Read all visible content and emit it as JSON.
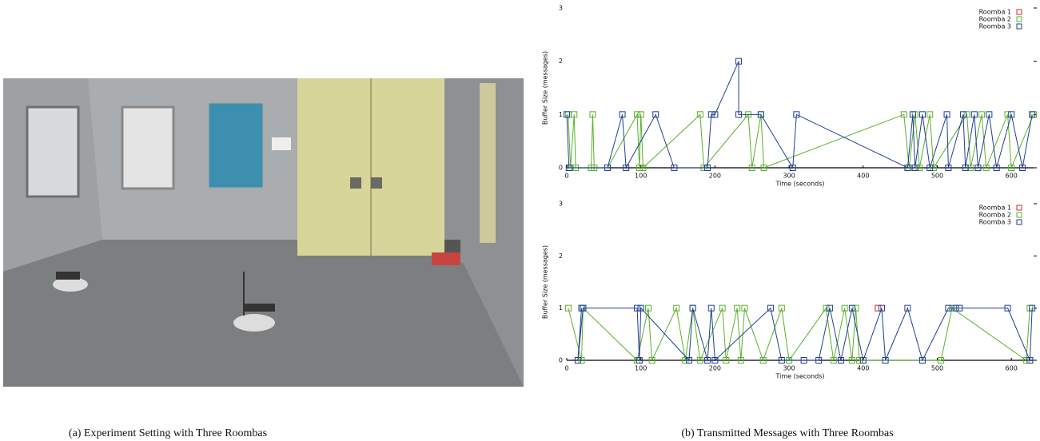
{
  "captions": [
    "(a) Experiment Setting with Three Roombas",
    "(b) Transmitted Messages with Three Roombas"
  ],
  "chart_data": [
    {
      "type": "line",
      "xlabel": "Time (seconds)",
      "ylabel": "Buffer Size (messages)",
      "xlim": [
        0,
        630
      ],
      "ylim": [
        0,
        3
      ],
      "xticks": [
        0,
        100,
        200,
        300,
        400,
        500,
        600
      ],
      "yticks": [
        0,
        1,
        2,
        3
      ],
      "legend": "upper right",
      "series": [
        {
          "name": "Roomba 1",
          "color": "#d62728",
          "x": [],
          "values": []
        },
        {
          "name": "Roomba 2",
          "color": "#5ab02a",
          "x": [
            2,
            5,
            10,
            12,
            33,
            35,
            37,
            55,
            95,
            98,
            100,
            103,
            180,
            185,
            245,
            250,
            262,
            266,
            455,
            462,
            470,
            476,
            490,
            495,
            540,
            545,
            560,
            566,
            595,
            600,
            630
          ],
          "values": [
            1,
            0,
            1,
            0,
            0,
            1,
            0,
            0,
            1,
            0,
            1,
            0,
            1,
            0,
            1,
            0,
            1,
            0,
            1,
            0,
            1,
            0,
            1,
            0,
            1,
            0,
            1,
            0,
            1,
            0,
            1
          ]
        },
        {
          "name": "Roomba 3",
          "color": "#1f3f94",
          "x": [
            0,
            3,
            55,
            75,
            80,
            120,
            145,
            190,
            195,
            200,
            232,
            232,
            262,
            305,
            310,
            460,
            467,
            470,
            480,
            490,
            513,
            515,
            535,
            538,
            550,
            555,
            570,
            580,
            600,
            615,
            628
          ],
          "values": [
            1,
            0,
            0,
            1,
            0,
            1,
            0,
            0,
            1,
            1,
            2,
            1,
            1,
            0,
            1,
            0,
            1,
            0,
            1,
            0,
            1,
            0,
            1,
            0,
            1,
            0,
            1,
            0,
            1,
            0,
            1
          ]
        }
      ]
    },
    {
      "type": "line",
      "xlabel": "Time (seconds)",
      "ylabel": "Buffer Size (messages)",
      "xlim": [
        0,
        630
      ],
      "ylim": [
        0,
        3
      ],
      "xticks": [
        0,
        100,
        200,
        300,
        400,
        500,
        600
      ],
      "yticks": [
        0,
        1,
        2,
        3
      ],
      "legend": "upper right",
      "series": [
        {
          "name": "Roomba 1",
          "color": "#d62728",
          "x": [
            420
          ],
          "values": [
            1
          ]
        },
        {
          "name": "Roomba 2",
          "color": "#5ab02a",
          "x": [
            2,
            20,
            22,
            95,
            110,
            115,
            148,
            160,
            170,
            180,
            210,
            215,
            230,
            235,
            240,
            265,
            290,
            300,
            350,
            360,
            375,
            385,
            390,
            395,
            505,
            520,
            620,
            625
          ],
          "values": [
            1,
            0,
            1,
            0,
            1,
            0,
            1,
            0,
            1,
            0,
            1,
            0,
            1,
            0,
            1,
            0,
            1,
            0,
            1,
            0,
            1,
            0,
            1,
            0,
            0,
            1,
            0,
            1
          ]
        },
        {
          "name": "Roomba 3",
          "color": "#1f3f94",
          "x": [
            20,
            15,
            22,
            95,
            98,
            100,
            165,
            170,
            190,
            195,
            200,
            275,
            290,
            320,
            340,
            355,
            370,
            385,
            400,
            425,
            430,
            460,
            480,
            515,
            525,
            530,
            595,
            625,
            628
          ],
          "values": [
            1,
            0,
            1,
            1,
            0,
            1,
            0,
            1,
            0,
            1,
            0,
            1,
            0,
            0,
            0,
            1,
            0,
            1,
            0,
            1,
            0,
            1,
            0,
            1,
            1,
            1,
            1,
            0,
            1
          ]
        }
      ]
    }
  ]
}
